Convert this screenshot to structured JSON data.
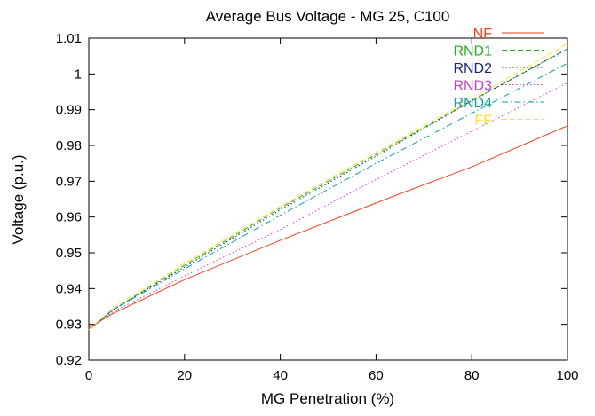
{
  "chart_data": {
    "type": "line",
    "title": "Average Bus Voltage - MG 25, C100",
    "xlabel": "MG Penetration (%)",
    "ylabel": "Voltage (p.u.)",
    "xlim": [
      0,
      100
    ],
    "ylim": [
      0.92,
      1.01
    ],
    "x_ticks": [
      0,
      20,
      40,
      60,
      80,
      100
    ],
    "x_tick_labels": [
      "0",
      "20",
      "40",
      "60",
      "80",
      "100"
    ],
    "y_ticks": [
      0.92,
      0.93,
      0.94,
      0.95,
      0.96,
      0.97,
      0.98,
      0.99,
      1.0,
      1.01
    ],
    "y_tick_labels": [
      "0.92",
      "0.93",
      "0.94",
      "0.95",
      "0.96",
      "0.97",
      "0.98",
      "0.99",
      "1",
      "1.01"
    ],
    "grid": false,
    "legend_position": "top-right",
    "series": [
      {
        "name": "NF",
        "color": "#f04020",
        "dash": "solid",
        "x": [
          0,
          5,
          20,
          40,
          65,
          80,
          100
        ],
        "y": [
          0.929,
          0.933,
          0.9425,
          0.9535,
          0.9665,
          0.974,
          0.9855
        ]
      },
      {
        "name": "RND1",
        "color": "#20b020",
        "dash": "dashed",
        "x": [
          0,
          5,
          20,
          40,
          60,
          80,
          100
        ],
        "y": [
          0.9285,
          0.934,
          0.9465,
          0.9625,
          0.9775,
          0.9925,
          1.007
        ]
      },
      {
        "name": "RND2",
        "color": "#1a237e",
        "dash": "dotted",
        "x": [
          0,
          5,
          20,
          40,
          60,
          80,
          100
        ],
        "y": [
          0.9285,
          0.934,
          0.946,
          0.962,
          0.977,
          0.9925,
          1.007
        ]
      },
      {
        "name": "RND3",
        "color": "#c040c0",
        "dash": "dotted",
        "x": [
          0,
          5,
          20,
          40,
          60,
          80,
          100
        ],
        "y": [
          0.9285,
          0.9335,
          0.9435,
          0.9565,
          0.9705,
          0.984,
          0.9975
        ]
      },
      {
        "name": "RND4",
        "color": "#10a0a0",
        "dash": "dashdot",
        "x": [
          0,
          5,
          20,
          40,
          60,
          80,
          100
        ],
        "y": [
          0.9285,
          0.934,
          0.9455,
          0.9605,
          0.975,
          0.989,
          1.003
        ]
      },
      {
        "name": "FF",
        "color": "#ffe020",
        "dash": "dashed",
        "x": [
          0,
          5,
          20,
          40,
          60,
          80,
          100
        ],
        "y": [
          0.9285,
          0.9345,
          0.947,
          0.963,
          0.978,
          0.993,
          1.0085
        ]
      }
    ]
  }
}
